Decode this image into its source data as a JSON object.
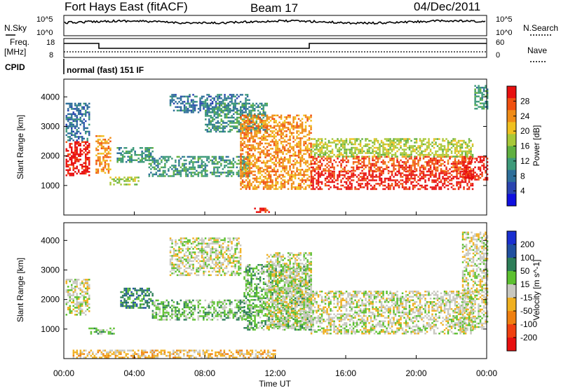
{
  "header": {
    "station": "Fort Hays East (fitACF)",
    "beam": "Beam 17",
    "date": "04/Dec/2011"
  },
  "noise_panel": {
    "left_label": "N.Sky",
    "right_label": "N.Search",
    "left_ticks": [
      "10^5",
      "10^0"
    ],
    "right_ticks": [
      "10^5",
      "10^0"
    ]
  },
  "freq_panel": {
    "left_label_line1": "Freq.",
    "left_label_line2": "[MHz]",
    "right_label": "Nave",
    "left_ticks": [
      "18",
      "8"
    ],
    "right_ticks": [
      "60",
      "0"
    ]
  },
  "cpid": {
    "label": "CPID",
    "text": "normal (fast) 151 IF"
  },
  "colors": {
    "power": [
      "#1010e0",
      "#2a45b0",
      "#2e6f9a",
      "#3e9a7a",
      "#60b040",
      "#a8c838",
      "#f0c020",
      "#f08c18",
      "#f05010",
      "#e81010"
    ],
    "velocity": [
      "#1a2fd0",
      "#2050a0",
      "#2d7e58",
      "#5cc030",
      "#c8c8c0",
      "#f0b020",
      "#f08010",
      "#f04010",
      "#e81010"
    ]
  },
  "chart_data": [
    {
      "type": "heatmap",
      "name_hint": "power",
      "ylabel": "Slant Range [km]",
      "ylim": [
        0,
        4600
      ],
      "yticks": [
        "1000",
        "2000",
        "3000",
        "4000"
      ],
      "xlim": [
        0,
        24
      ],
      "colorbar_label": "Power [dB]",
      "colorbar_ticks": [
        "4",
        "8",
        "12",
        "16",
        "20",
        "24",
        "28"
      ],
      "regions": [
        {
          "t0": 0.1,
          "t1": 1.4,
          "r0": 1350,
          "r1": 2500,
          "level": 9
        },
        {
          "t0": 0.1,
          "t1": 1.4,
          "r0": 2500,
          "r1": 3800,
          "level": 2
        },
        {
          "t0": 1.8,
          "t1": 2.6,
          "r0": 1400,
          "r1": 2700,
          "level": 7
        },
        {
          "t0": 2.6,
          "t1": 4.2,
          "r0": 1050,
          "r1": 1300,
          "level": 5
        },
        {
          "t0": 3.0,
          "t1": 5.0,
          "r0": 1800,
          "r1": 2300,
          "level": 3
        },
        {
          "t0": 4.8,
          "t1": 10.5,
          "r0": 1300,
          "r1": 2000,
          "level": 3
        },
        {
          "t0": 6.0,
          "t1": 10.5,
          "r0": 3500,
          "r1": 4100,
          "level": 2
        },
        {
          "t0": 8.0,
          "t1": 11.5,
          "r0": 2800,
          "r1": 3800,
          "level": 3
        },
        {
          "t0": 10.0,
          "t1": 14.0,
          "r0": 900,
          "r1": 3400,
          "level": 7
        },
        {
          "t0": 14.0,
          "t1": 23.2,
          "r0": 850,
          "r1": 1500,
          "level": 9
        },
        {
          "t0": 14.0,
          "t1": 23.2,
          "r0": 1500,
          "r1": 2000,
          "level": 8
        },
        {
          "t0": 14.0,
          "t1": 23.2,
          "r0": 2000,
          "r1": 2600,
          "level": 5
        },
        {
          "t0": 10.8,
          "t1": 11.6,
          "r0": 80,
          "r1": 250,
          "level": 9
        },
        {
          "t0": 22.6,
          "t1": 24.0,
          "r0": 1200,
          "r1": 2000,
          "level": 9
        },
        {
          "t0": 23.3,
          "t1": 24.0,
          "r0": 3600,
          "r1": 4400,
          "level": 3
        }
      ]
    },
    {
      "type": "heatmap",
      "name_hint": "velocity",
      "ylabel": "Slant Range [km]",
      "ylim": [
        0,
        4600
      ],
      "yticks": [
        "1000",
        "2000",
        "3000",
        "4000"
      ],
      "xlim": [
        0,
        24
      ],
      "xticks": [
        "00:00",
        "04:00",
        "08:00",
        "12:00",
        "16:00",
        "20:00",
        "00:00"
      ],
      "xlabel": "Time UT",
      "colorbar_label": "Velocity [m s^-1]",
      "colorbar_ticks": [
        "200",
        "100",
        "50",
        "15",
        "-15",
        "-50",
        "-100",
        "-200"
      ],
      "regions": [
        {
          "t0": 0.1,
          "t1": 1.4,
          "r0": 1500,
          "r1": 2700,
          "level": 4
        },
        {
          "t0": 1.4,
          "t1": 2.8,
          "r0": 850,
          "r1": 1050,
          "level": 3
        },
        {
          "t0": 3.2,
          "t1": 5.0,
          "r0": 1700,
          "r1": 2400,
          "level": 2
        },
        {
          "t0": 5.0,
          "t1": 10.6,
          "r0": 1300,
          "r1": 2000,
          "level": 3
        },
        {
          "t0": 6.0,
          "t1": 10.0,
          "r0": 2800,
          "r1": 4100,
          "level": 4
        },
        {
          "t0": 10.2,
          "t1": 14.0,
          "r0": 1000,
          "r1": 3200,
          "level": 3
        },
        {
          "t0": 11.5,
          "t1": 14.0,
          "r0": 1000,
          "r1": 3600,
          "level": 4
        },
        {
          "t0": 14.0,
          "t1": 23.2,
          "r0": 850,
          "r1": 2300,
          "level": 4
        },
        {
          "t0": 0.5,
          "t1": 12.0,
          "r0": 50,
          "r1": 300,
          "level": 5
        },
        {
          "t0": 22.6,
          "t1": 24.0,
          "r0": 1000,
          "r1": 4300,
          "level": 4
        }
      ]
    }
  ]
}
